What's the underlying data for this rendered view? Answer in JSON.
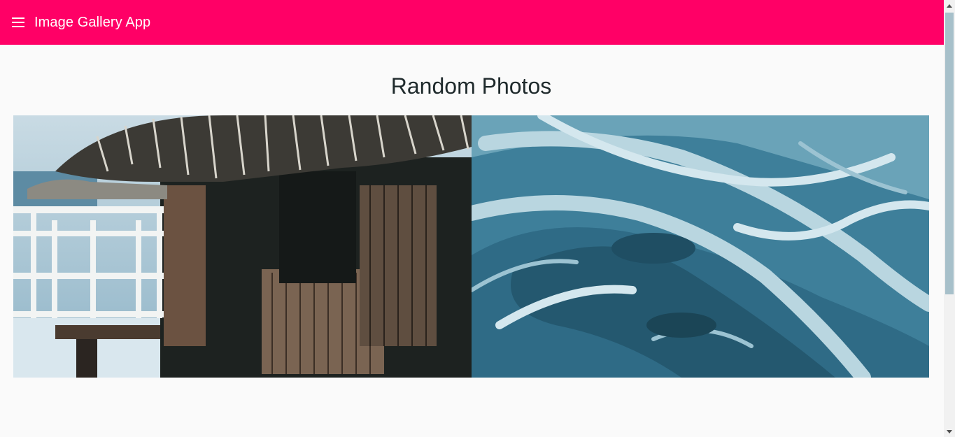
{
  "appbar": {
    "title": "Image Gallery App",
    "menu_icon": "hamburger-menu-icon",
    "color": "#ff0066"
  },
  "main": {
    "heading": "Random Photos",
    "photos": [
      {
        "name": "photo-overwater-hut"
      },
      {
        "name": "photo-aerial-river"
      }
    ]
  },
  "colors": {
    "background": "#fafafa",
    "heading_text": "#1f2a2c"
  }
}
